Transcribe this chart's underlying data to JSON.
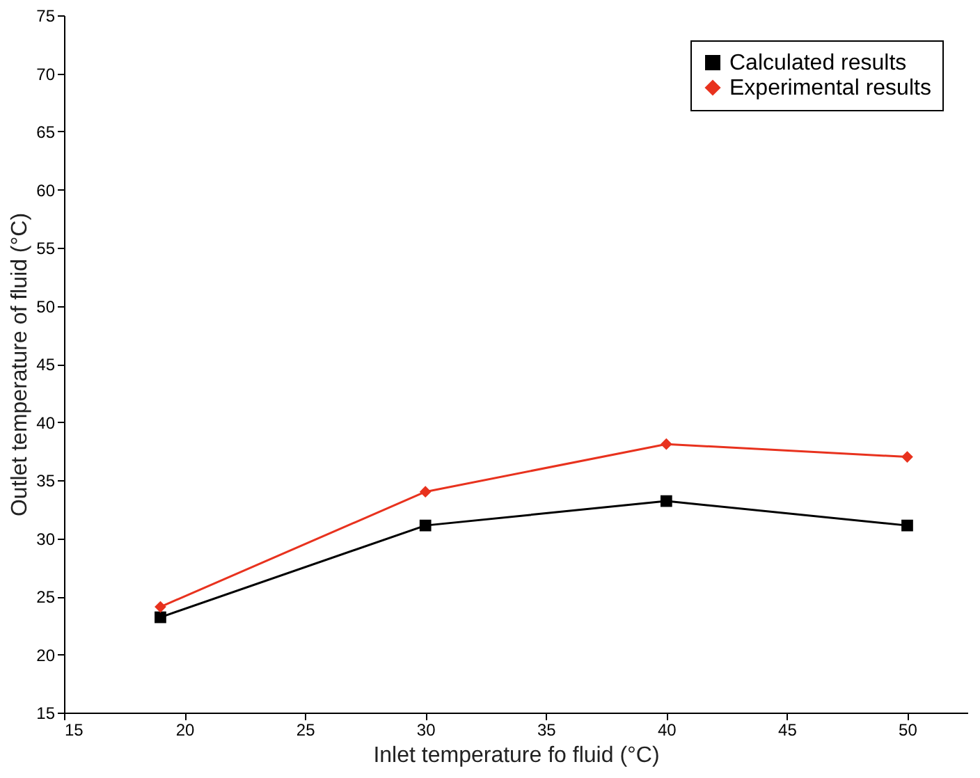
{
  "chart_data": {
    "type": "line",
    "xlabel": "Inlet temperature fo fluid (°C)",
    "ylabel": "Outlet temperature of fluid (°C)",
    "x": [
      19,
      30,
      40,
      50
    ],
    "series": [
      {
        "name": "Calculated results",
        "color": "#000000",
        "marker": "square",
        "values": [
          23.2,
          31.1,
          33.2,
          31.1
        ]
      },
      {
        "name": "Experimental results",
        "color": "#e8321e",
        "marker": "diamond",
        "values": [
          24.1,
          34.0,
          38.1,
          37.0
        ]
      }
    ],
    "xlim": [
      15,
      52.5
    ],
    "xticks": [
      15,
      20,
      25,
      30,
      35,
      40,
      45,
      50
    ],
    "ylim": [
      15,
      75
    ],
    "yticks": [
      15,
      20,
      25,
      30,
      35,
      40,
      45,
      50,
      55,
      60,
      65,
      70,
      75
    ],
    "grid": false,
    "legend": "top right",
    "line_style": "solid"
  }
}
